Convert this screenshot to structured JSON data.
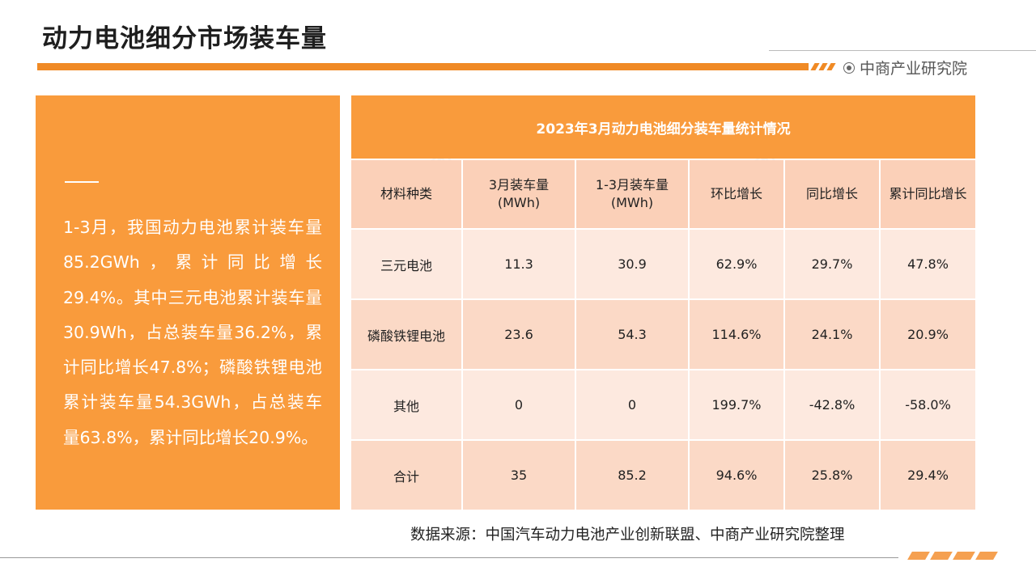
{
  "header": {
    "title": "动力电池细分市场装车量",
    "brand": "中商产业研究院"
  },
  "summary": {
    "text": "1-3月，我国动力电池累计装车量85.2GWh，累计同比增长29.4%。其中三元电池累计装车量30.9Wh，占总装车量36.2%，累计同比增长47.8%；磷酸铁锂电池累计装车量54.3GWh，占总装车量63.8%，累计同比增长20.9%。"
  },
  "table": {
    "title": "2023年3月动力电池细分装车量统计情况",
    "headers": [
      {
        "line1": "材料种类",
        "line2": ""
      },
      {
        "line1": "3月装车量",
        "line2": "(MWh)"
      },
      {
        "line1": "1-3月装车量",
        "line2": "(MWh)"
      },
      {
        "line1": "环比增长",
        "line2": ""
      },
      {
        "line1": "同比增长",
        "line2": ""
      },
      {
        "line1": "累计同比增长",
        "line2": ""
      }
    ],
    "rows": [
      [
        "三元电池",
        "11.3",
        "30.9",
        "62.9%",
        "29.7%",
        "47.8%"
      ],
      [
        "磷酸铁锂电池",
        "23.6",
        "54.3",
        "114.6%",
        "24.1%",
        "20.9%"
      ],
      [
        "其他",
        "0",
        "0",
        "199.7%",
        "-42.8%",
        "-58.0%"
      ],
      [
        "合计",
        "35",
        "85.2",
        "94.6%",
        "25.8%",
        "29.4%"
      ]
    ]
  },
  "footer": {
    "source": "数据来源：中国汽车动力电池产业创新联盟、中商产业研究院整理"
  },
  "colors": {
    "accent": "#f08a25",
    "panel": "#f99b3c",
    "header_row": "#fbd0b8",
    "row_light": "#fde9df",
    "row_dark": "#fbd9c6"
  }
}
